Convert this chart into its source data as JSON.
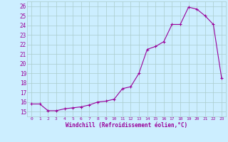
{
  "x": [
    0,
    1,
    2,
    3,
    4,
    5,
    6,
    7,
    8,
    9,
    10,
    11,
    12,
    13,
    14,
    15,
    16,
    17,
    18,
    19,
    20,
    21,
    22,
    23
  ],
  "y": [
    15.8,
    15.8,
    15.1,
    15.1,
    15.3,
    15.4,
    15.5,
    15.7,
    16.0,
    16.1,
    16.3,
    17.4,
    17.6,
    19.0,
    21.5,
    21.8,
    22.3,
    24.1,
    24.1,
    25.9,
    25.7,
    25.0,
    24.1,
    18.5
  ],
  "line_color": "#990099",
  "marker": "D",
  "marker_size": 2,
  "bg_color": "#cceeff",
  "grid_color": "#aacccc",
  "xlabel": "Windchill (Refroidissement éolien,°C)",
  "ylim": [
    14.5,
    26.5
  ],
  "xlim": [
    -0.5,
    23.5
  ],
  "yticks": [
    15,
    16,
    17,
    18,
    19,
    20,
    21,
    22,
    23,
    24,
    25,
    26
  ],
  "xticks": [
    0,
    1,
    2,
    3,
    4,
    5,
    6,
    7,
    8,
    9,
    10,
    11,
    12,
    13,
    14,
    15,
    16,
    17,
    18,
    19,
    20,
    21,
    22,
    23
  ]
}
